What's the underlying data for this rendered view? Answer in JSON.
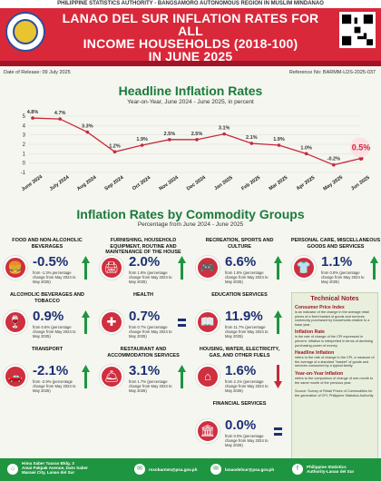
{
  "top_bar": "PHILIPPINE STATISTICS AUTHORITY - BANGSAMORO AUTONOMOUS REGION IN MUSLIM MINDANAO",
  "header": {
    "title_line1": "LANAO DEL SUR INFLATION RATES  FOR ALL",
    "title_line2": "INCOME HOUSEHOLDS (2018-100)",
    "title_line3": "IN JUNE 2025"
  },
  "release": "Date of Release: 09 July 2025",
  "reference": "Reference No: BARMM-LDS-2025-037",
  "headline": {
    "title": "Headline Inflation Rates",
    "subtitle": "Year-on-Year, June 2024 - June 2025, in percent"
  },
  "chart_data": {
    "type": "line",
    "x": [
      "June 2024",
      "July 2024",
      "Aug 2024",
      "Sep 2024",
      "Oct 2024",
      "Nov 2024",
      "Dec 2024",
      "Jan 2025",
      "Feb 2025",
      "Mar 2025",
      "Apr 2025",
      "May 2025",
      "Jun 2025"
    ],
    "labels": [
      "4.8%",
      "4.7%",
      "3.3%",
      "1.2%",
      "1.9%",
      "2.5%",
      "2.5%",
      "3.1%",
      "2.1%",
      "1.9%",
      "1.0%",
      "-0.2%",
      "0.5%"
    ],
    "values": [
      4.8,
      4.7,
      3.3,
      1.2,
      1.9,
      2.5,
      2.5,
      3.1,
      2.1,
      1.9,
      1.0,
      -0.2,
      0.5
    ],
    "yticks": [
      "5",
      "4",
      "3",
      "2",
      "1",
      "0",
      "-1"
    ],
    "ylim": [
      -1,
      5
    ],
    "color": "#c8283b",
    "highlight_last": true
  },
  "commodity": {
    "title": "Inflation Rates by Commodity Groups",
    "subtitle": "Percentage from June 2024 - June 2025"
  },
  "cards": [
    {
      "title": "FOOD AND NON-ALCOHOLIC BEVERAGES",
      "value": "-0.5%",
      "desc": "from -1.3% percentage change from May 2024 to May 2025)",
      "icon": "burger-icon",
      "dir": "up"
    },
    {
      "title": "FURNISHING, HOUSEHOLD EQUIPMENT, ROUTINE AND MAINTENANCE OF THE HOUSE",
      "value": "2.0%",
      "desc": "from 1.9% (percentage change from May 2024 to May 2025)",
      "icon": "printer-icon",
      "dir": "up"
    },
    {
      "title": "RECREATION, SPORTS  AND CULTURE",
      "value": "6.6%",
      "desc": "from 1.8% (percentage change from May 2024 to May 2025)",
      "icon": "gamepad-icon",
      "dir": "up"
    },
    {
      "title": "PERSONAL CARE, MISCELLANEOUS GOODS AND SERVICES",
      "value": "1.1%",
      "desc": "from 0.8% (percentage change from May 2024 to May 2025)",
      "icon": "shirt-icon",
      "dir": "up"
    },
    {
      "title": "ALCOHOLIC BEVERAGES AND TOBACCO",
      "value": "0.9%",
      "desc": "from 0.6% (percentage change from May 2024 to May 2025)",
      "icon": "bottle-icon",
      "dir": "up"
    },
    {
      "title": "HEALTH",
      "value": "0.7%",
      "desc": "from 0.7% (percentage change from May 2024 to May 2025)",
      "icon": "medkit-icon",
      "dir": "equal"
    },
    {
      "title": "EDUCATION SERVICES",
      "value": "11.9%",
      "desc": "from 11.7% (percentage change from May 2024 to May 2025)",
      "icon": "book-icon",
      "dir": "up"
    },
    {
      "title": "CLOTHING AND FOOTWEAR",
      "value": "2.7%",
      "desc": "from 1.9% (percentage change from May 2024 to May 2025)",
      "icon": "shoe-icon",
      "dir": "up"
    },
    {
      "title": "TRANSPORT",
      "value": "-2.1%",
      "desc": "from -2.9% (percentage change from May 2024 to May 2025)",
      "icon": "car-icon",
      "dir": "up"
    },
    {
      "title": "RESTAURANT AND ACCOMMODATION SERVICES",
      "value": "3.1%",
      "desc": "from 1.7% (percentage change from May 2024 to May 2025)",
      "icon": "bell-icon",
      "dir": "up"
    },
    {
      "title": "HOUSING, WATER, ELECTRICITY, GAS, AND OTHER FUELS",
      "value": "1.6%",
      "desc": "from 2.1% (percentage change from May 2024 to May 2025)",
      "icon": "house-icon",
      "dir": "down"
    },
    {
      "title": "INFORMATION AND COMMUNICATION",
      "value": "0.3%",
      "desc": "from 0.2% (percentage change from May 2024 to May 2025)",
      "icon": "phone-icon",
      "dir": "up"
    },
    {
      "title": "FINANCIAL SERVICES",
      "value": "0.0%",
      "desc": "from 0.0% (percentage change from May 2024 to May 2025)",
      "icon": "bank-icon",
      "dir": "equal"
    }
  ],
  "tech": {
    "title": "Technical Notes",
    "cpi_h": "Consumer Price Index",
    "cpi_p": "is an indicator of the change in the average retail prices of a fixed basket of goods and services commonly purchased by households relative to a base year.",
    "infl_h": "Inflation Rate",
    "infl_p": "is the rate of change of the CPI expressed in percent. Inflation is interpreted in terms of declining purchasing power of money.",
    "head_h": "Headline Inflation",
    "head_p": "refers to the rate of change in the CPI, a measure of the average of a standard \"basket\" of goods and services consumed by a typical family.",
    "yoy_h": "Year-on-Year Inflation",
    "yoy_p": "refers to the comparison of change of one month to the same month of the previous year.",
    "source": "Source: Survey of Retail Prices of Commodities for the generation of CPI, Philippine Statistics Authority"
  },
  "footer": {
    "addr1": "Hima Saber Tauras Bldg. 3",
    "addr2": "Amai Pakpak Avenue, Dato Saber",
    "addr3": "Marawi City, Lanao del Sur",
    "email1": "rssobarmm@psa.gov.ph",
    "email2": "lanaodelsur@psa.gov.ph",
    "org1": "Philippine Statistics",
    "org2": "Authority-Lanao del Sur"
  }
}
